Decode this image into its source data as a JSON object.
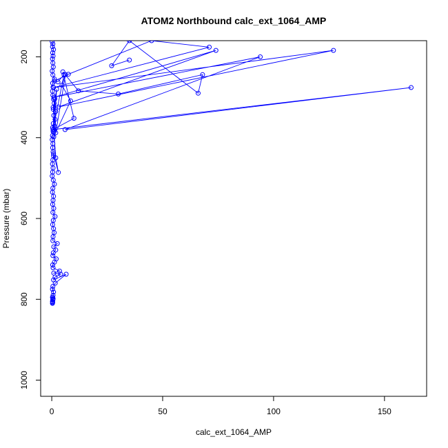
{
  "chart_data": {
    "type": "line",
    "title": "ATOM2 Northbound calc_ext_1064_AMP",
    "xlabel": "calc_ext_1064_AMP",
    "ylabel": "Pressure (mbar)",
    "xlim": [
      -5,
      169
    ],
    "ylim": [
      160,
      1040
    ],
    "y_reversed": true,
    "x_ticks": [
      0,
      50,
      100,
      150
    ],
    "y_ticks": [
      200,
      400,
      600,
      800,
      1000
    ],
    "grid": false,
    "legend": "none",
    "series_color": "#0000ff",
    "marker": "open-circle",
    "series": [
      {
        "x": [
          0.2,
          0.5,
          0.3,
          0.8,
          0.4,
          0.6,
          0.3,
          0.5,
          0.7,
          0.2,
          0.5,
          1.2,
          0.4,
          0.6,
          0.3,
          0.5,
          0.8,
          1.1,
          0.6,
          1.8,
          0.9,
          1.5,
          0.7,
          0.4,
          0.6,
          0.3,
          0.2,
          0.5,
          0.4,
          0.6,
          0.8,
          0.5,
          0.3,
          0.6,
          0.4,
          0.2,
          0.7,
          1.2,
          0.5,
          0.3,
          0.8,
          0.6,
          0.4,
          0.9,
          0.5,
          1.5,
          0.7,
          0.4,
          0.8,
          1.1,
          0.6,
          0.5,
          2.5,
          0.9,
          1.8,
          0.7,
          0.5,
          2.0,
          1.2,
          0.4,
          0.6,
          3.5,
          0.9,
          4.0,
          1.5,
          0.8,
          6.5,
          1.6,
          0.5,
          0.3,
          0.8,
          0.6,
          0.4,
          0.5,
          0.3,
          0.4,
          0.6,
          0.5,
          0.3,
          0.4,
          0.5,
          0.3
        ],
        "y": [
          162,
          168,
          175,
          182,
          190,
          198,
          205,
          215,
          225,
          235,
          245,
          255,
          265,
          275,
          285,
          295,
          305,
          315,
          325,
          335,
          345,
          355,
          365,
          375,
          385,
          395,
          405,
          415,
          425,
          435,
          445,
          455,
          465,
          475,
          485,
          495,
          505,
          515,
          525,
          535,
          545,
          555,
          565,
          575,
          585,
          595,
          605,
          615,
          625,
          635,
          645,
          655,
          662,
          670,
          678,
          685,
          692,
          700,
          708,
          715,
          722,
          730,
          735,
          738,
          745,
          752,
          738,
          760,
          768,
          775,
          782,
          790,
          795,
          800,
          805,
          808,
          798,
          802,
          810,
          806,
          800,
          795
        ]
      },
      {
        "x": [
          35,
          27,
          35,
          66,
          68,
          30,
          12,
          5,
          10,
          0.6,
          162,
          6,
          94,
          1,
          74,
          3,
          127,
          0.8,
          71,
          45,
          7.5,
          1.2,
          2.8,
          5.5,
          0.6,
          1.4,
          1.8,
          6.2,
          4.6,
          8.5,
          0.9,
          1.3,
          0.7,
          2.2,
          1.0,
          1.8,
          3.0,
          0.8
        ],
        "y": [
          208,
          222,
          160,
          290,
          244,
          292,
          284,
          237,
          352,
          380,
          276,
          380,
          200,
          300,
          184,
          324,
          184,
          276,
          176,
          160,
          243,
          260,
          262,
          244,
          380,
          304,
          388,
          244,
          270,
          309,
          398,
          372,
          330,
          280,
          386,
          450,
          486,
          440
        ]
      }
    ]
  }
}
